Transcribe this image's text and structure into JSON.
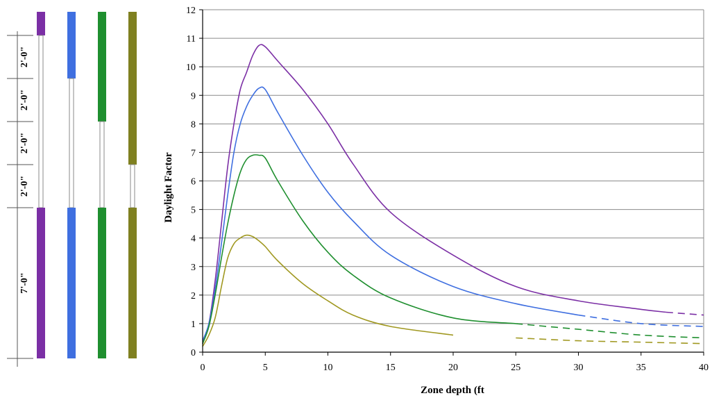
{
  "wall_diagram": {
    "dimension_labels": [
      "2'-0\"",
      "2'-0\"",
      "2'-0\"",
      "2'-0\"",
      "7'-0\""
    ],
    "windows": [
      {
        "color": "#7b2fa5",
        "glazing_ft": 8
      },
      {
        "color": "#3f6fe0",
        "glazing_ft": 6
      },
      {
        "color": "#1f8f2f",
        "glazing_ft": 4
      },
      {
        "color": "#7f8020",
        "glazing_ft": 2
      }
    ]
  },
  "chart_data": {
    "type": "line",
    "xlabel": "Zone depth (ft",
    "ylabel": "Daylight Factor",
    "xlim": [
      0,
      40
    ],
    "ylim": [
      0,
      12
    ],
    "x_ticks": [
      0,
      5,
      10,
      15,
      20,
      25,
      30,
      35,
      40
    ],
    "y_ticks": [
      0,
      1,
      2,
      3,
      4,
      5,
      6,
      7,
      8,
      9,
      10,
      11,
      12
    ],
    "grid": "horizontal",
    "series": [
      {
        "color": "#7b2fa5",
        "x": [
          0,
          0.5,
          1,
          1.5,
          2,
          2.5,
          3,
          3.5,
          4,
          4.5,
          5,
          6,
          8,
          10,
          12,
          15,
          20,
          25,
          30,
          35,
          37,
          40
        ],
        "y": [
          0.3,
          1.0,
          2.5,
          4.5,
          6.5,
          8.0,
          9.2,
          9.8,
          10.4,
          10.75,
          10.7,
          10.2,
          9.2,
          8.0,
          6.6,
          4.9,
          3.4,
          2.3,
          1.8,
          1.5,
          1.4,
          1.3
        ],
        "dashed_from": 37
      },
      {
        "color": "#3f6fe0",
        "x": [
          0,
          0.5,
          1,
          1.5,
          2,
          2.5,
          3,
          3.5,
          4,
          4.5,
          5,
          6,
          8,
          10,
          12,
          15,
          20,
          25,
          30,
          35,
          40
        ],
        "y": [
          0.4,
          1.0,
          2.2,
          3.8,
          5.5,
          7.0,
          8.0,
          8.6,
          9.0,
          9.25,
          9.2,
          8.4,
          6.9,
          5.6,
          4.6,
          3.4,
          2.3,
          1.7,
          1.3,
          1.0,
          0.9
        ],
        "dashed_from": 30
      },
      {
        "color": "#1f8f2f",
        "x": [
          0,
          0.5,
          1,
          1.5,
          2,
          2.5,
          3,
          3.5,
          4,
          4.5,
          5,
          6,
          8,
          10,
          12,
          15,
          20,
          25,
          30,
          35,
          40
        ],
        "y": [
          0.3,
          0.9,
          2.0,
          3.3,
          4.5,
          5.5,
          6.3,
          6.75,
          6.9,
          6.9,
          6.8,
          6.0,
          4.6,
          3.5,
          2.7,
          1.9,
          1.2,
          1.0,
          0.8,
          0.6,
          0.5
        ],
        "dashed_from": 25
      },
      {
        "color": "#a09820",
        "x": [
          0,
          0.5,
          1,
          1.5,
          2,
          2.5,
          3,
          3.5,
          4,
          4.5,
          5,
          6,
          8,
          10,
          12,
          15,
          20,
          25,
          30,
          35,
          40
        ],
        "y": [
          0.2,
          0.6,
          1.2,
          2.3,
          3.3,
          3.8,
          4.0,
          4.1,
          4.05,
          3.9,
          3.7,
          3.2,
          2.4,
          1.8,
          1.3,
          0.9,
          0.6,
          0.5,
          0.4,
          0.35,
          0.3
        ],
        "dashed_from": 22
      }
    ]
  }
}
